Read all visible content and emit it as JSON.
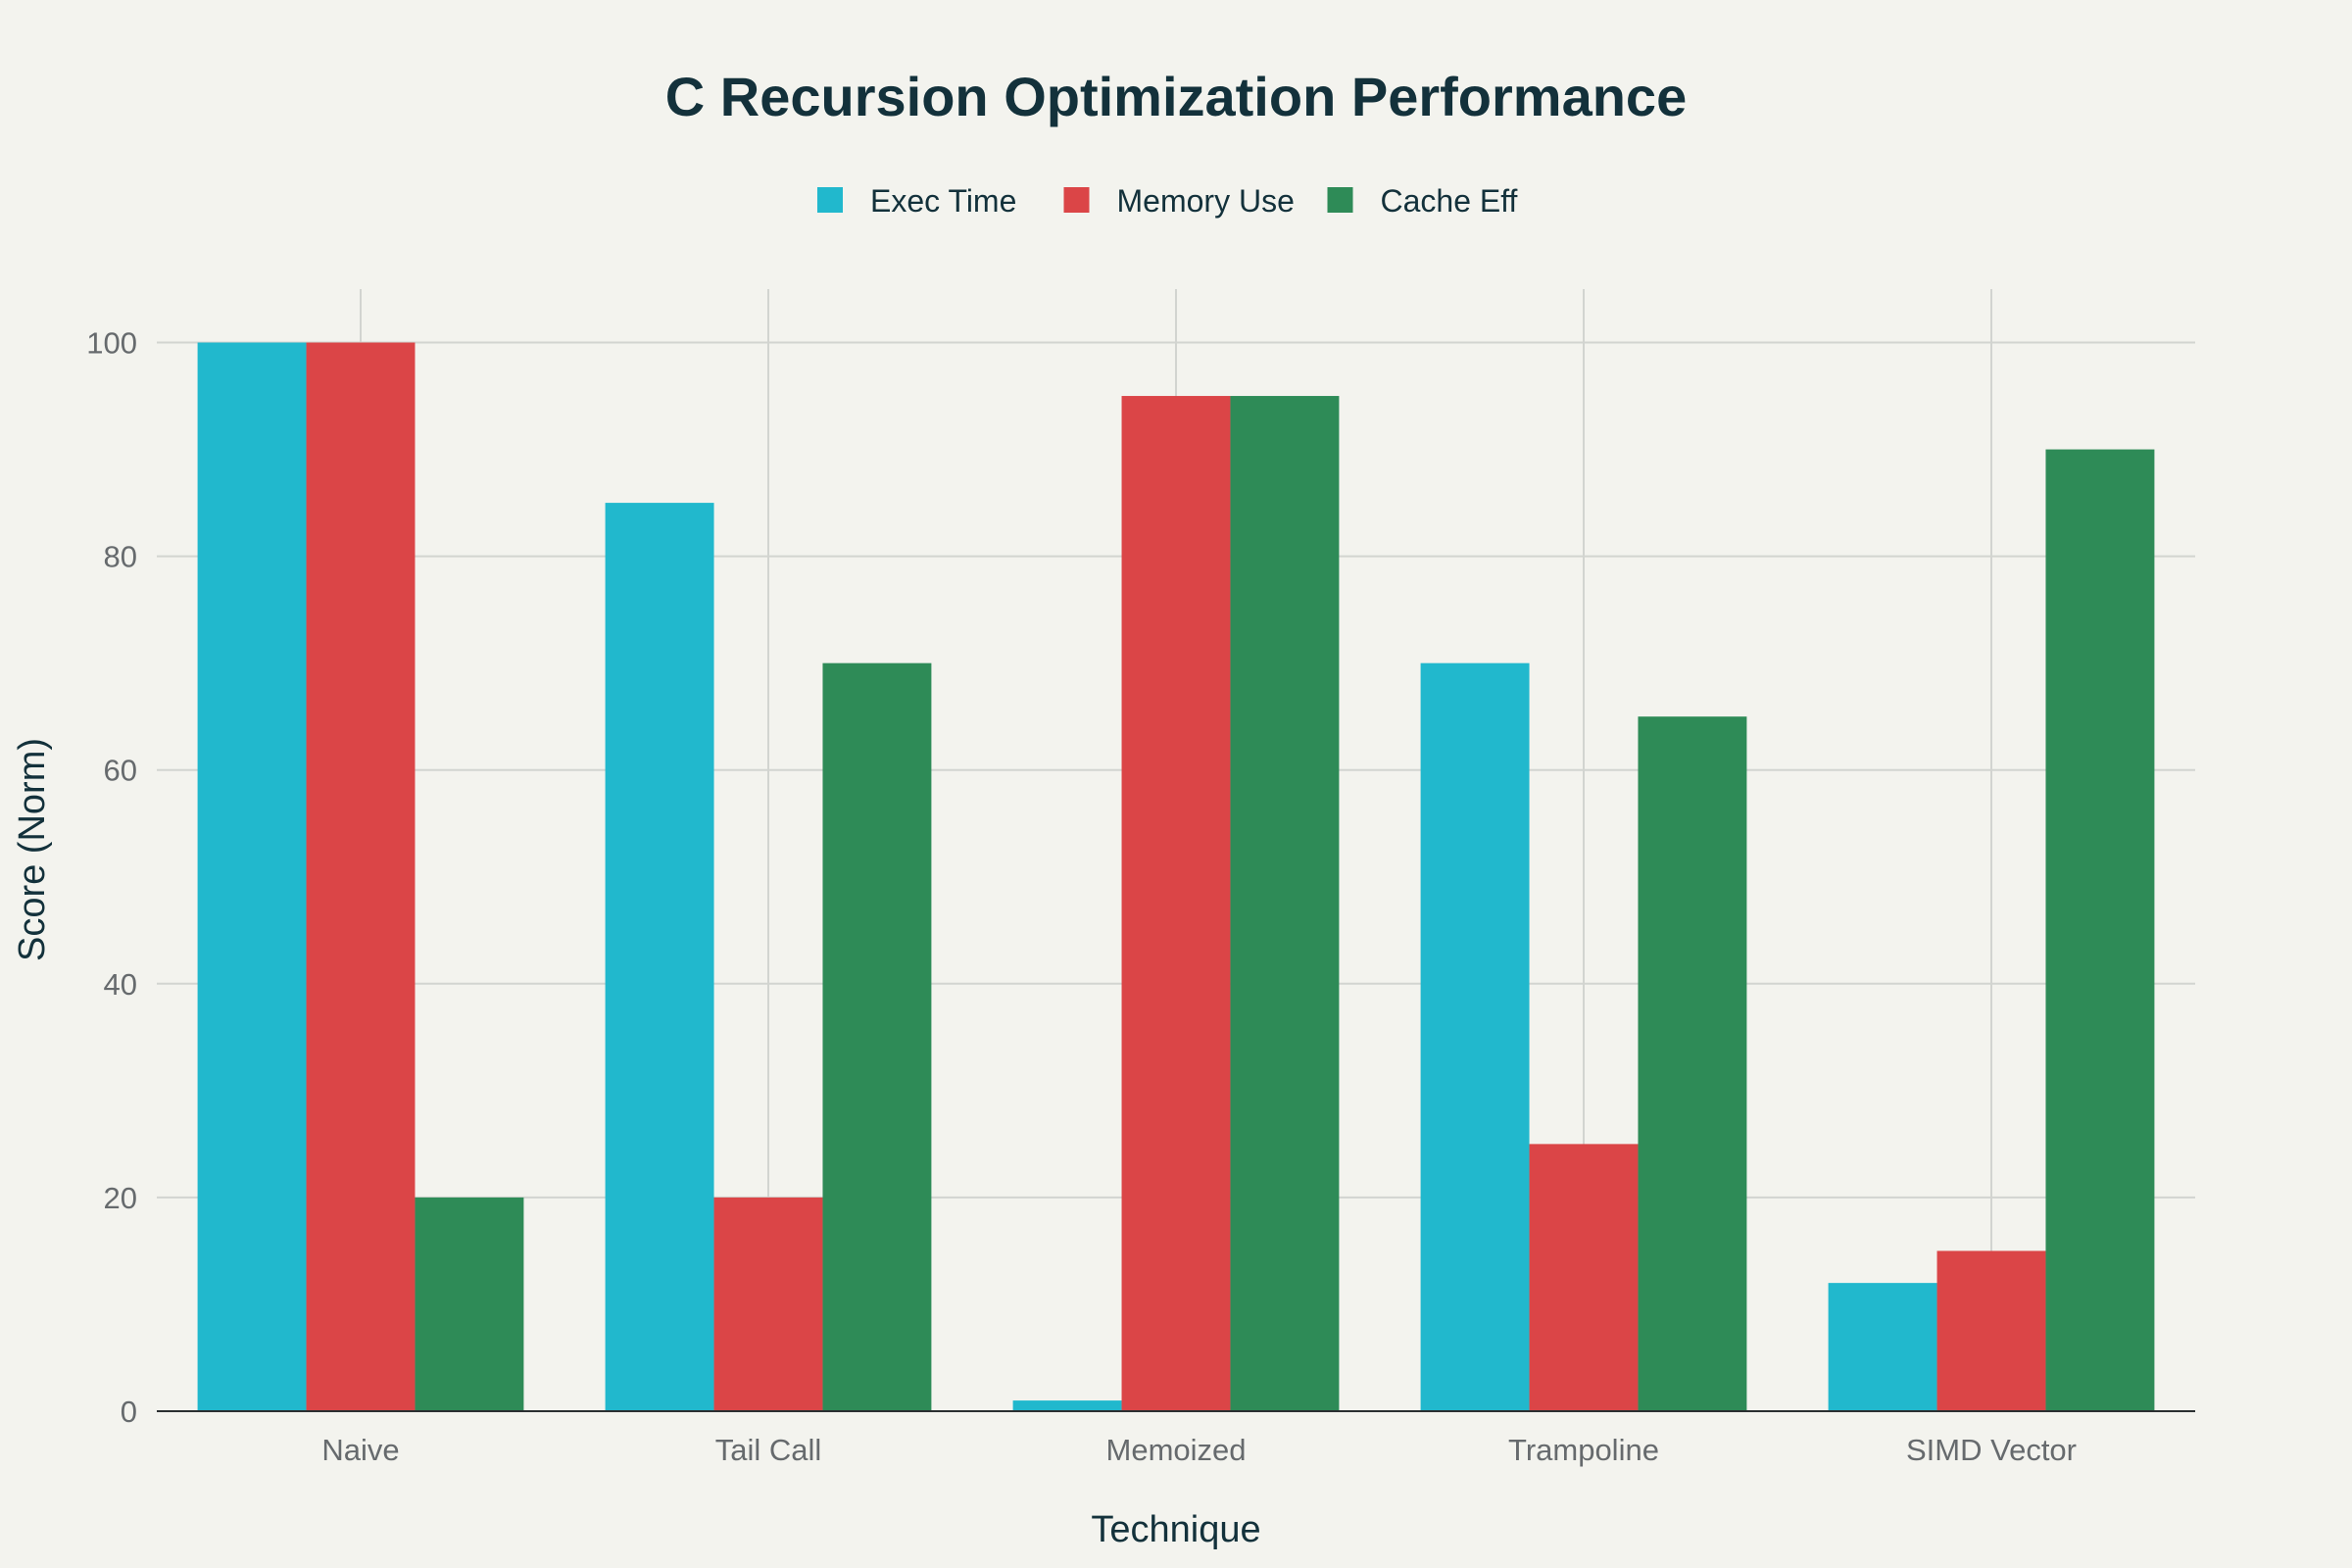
{
  "chart_data": {
    "type": "bar",
    "title": "C Recursion Optimization Performance",
    "xlabel": "Technique",
    "ylabel": "Score (Norm)",
    "categories": [
      "Naive",
      "Tail Call",
      "Memoized",
      "Trampoline",
      "SIMD Vector"
    ],
    "series": [
      {
        "name": "Exec Time",
        "color": "#21b8cd",
        "values": [
          100,
          85,
          1,
          70,
          12
        ]
      },
      {
        "name": "Memory Use",
        "color": "#db4547",
        "values": [
          100,
          20,
          95,
          25,
          15
        ]
      },
      {
        "name": "Cache Eff",
        "color": "#2e8b57",
        "values": [
          20,
          70,
          95,
          65,
          90
        ]
      }
    ],
    "ylim": [
      0,
      105
    ],
    "yticks": [
      0,
      20,
      40,
      60,
      80,
      100
    ],
    "grid": true,
    "legend_position": "top-center"
  }
}
